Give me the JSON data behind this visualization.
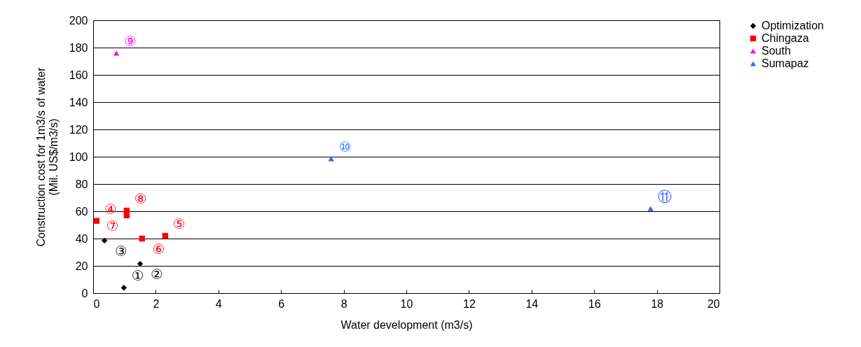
{
  "chart_data": {
    "type": "scatter",
    "xlabel": "Water development (m3/s)",
    "ylabel": "Construction cost for 1m3/s  of water\n(Mil. US$/m3/s)",
    "xlim": [
      0,
      20
    ],
    "xticks": [
      0,
      2,
      4,
      6,
      8,
      10,
      12,
      14,
      16,
      18,
      20
    ],
    "ylim": [
      0,
      200
    ],
    "yticks": [
      0,
      20,
      40,
      60,
      80,
      100,
      120,
      140,
      160,
      180,
      200
    ],
    "grid": "y",
    "legend": "right",
    "series": [
      {
        "name": "Optimization",
        "color": "#000000",
        "marker": "diamond",
        "x": [
          0.98,
          1.5,
          0.36
        ],
        "values": [
          4,
          21.5,
          38.5
        ]
      },
      {
        "name": "Chingaza",
        "color": "#ff0000",
        "marker": "square",
        "x": [
          0.11,
          1.07,
          1.07,
          1.56,
          2.3
        ],
        "values": [
          53,
          60.5,
          57,
          40,
          42
        ]
      },
      {
        "name": "South",
        "color": "#ff00ff",
        "marker": "triangle",
        "x": [
          0.74
        ],
        "values": [
          176
        ]
      },
      {
        "name": "Sumapaz",
        "color": "#3366ff",
        "marker": "triangle",
        "x": [
          7.6,
          17.8
        ],
        "values": [
          98.5,
          62
        ]
      }
    ],
    "annotations": [
      {
        "text": "①",
        "x": 0.98,
        "y": 4
      },
      {
        "text": "②",
        "x": 1.5,
        "y": 21.5
      },
      {
        "text": "③",
        "x": 0.36,
        "y": 38.5
      },
      {
        "text": "④",
        "x": 0.11,
        "y": 53
      },
      {
        "text": "⑤",
        "x": 2.3,
        "y": 42
      },
      {
        "text": "⑥",
        "x": 1.56,
        "y": 40
      },
      {
        "text": "⑦",
        "x": 1.07,
        "y": 57
      },
      {
        "text": "⑧",
        "x": 1.07,
        "y": 60.5
      },
      {
        "text": "⑨",
        "x": 0.74,
        "y": 176
      },
      {
        "text": "⑩",
        "x": 7.6,
        "y": 98.5
      },
      {
        "text": "⑪",
        "x": 17.8,
        "y": 62
      }
    ]
  }
}
